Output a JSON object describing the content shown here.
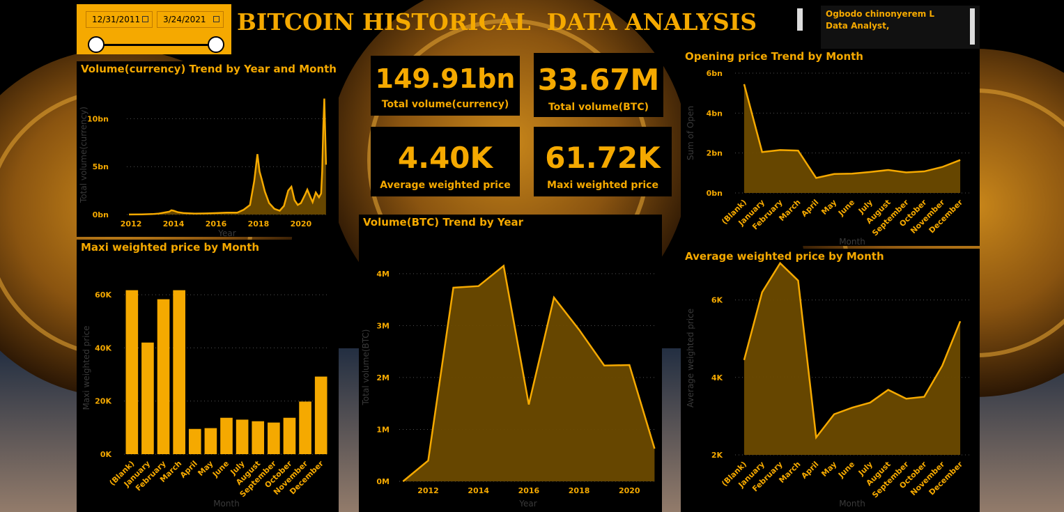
{
  "title": "BITCOIN HISTORICAL  DATA ANALYSIS",
  "author": {
    "name": "Ogbodo chinonyerem L",
    "role": "Data Analyst,"
  },
  "date_slicer": {
    "start": "12/31/2011",
    "end": "3/24/2021"
  },
  "kpis": {
    "total_volume_currency": {
      "value": "149.91bn",
      "label": "Total volume(currency)"
    },
    "total_volume_btc": {
      "value": "33.67M",
      "label": "Total volume(BTC)"
    },
    "avg_weighted_price": {
      "value": "4.40K",
      "label": "Average weighted price"
    },
    "maxi_weighted_price": {
      "value": "61.72K",
      "label": "Maxi weighted price"
    }
  },
  "colors": {
    "accent": "#F5A900",
    "fill": "#6B4A00",
    "background": "#000000"
  },
  "chart_data": [
    {
      "id": "volcur",
      "type": "area",
      "title": "Volume(currency) Trend by Year and Month",
      "xlabel": "Year",
      "ylabel": "Total volume(currency)",
      "x_ticks": [
        "2012",
        "2014",
        "2016",
        "2018",
        "2020"
      ],
      "y_ticks": [
        "0bn",
        "5bn",
        "10bn"
      ],
      "xlim": [
        2011.8,
        2021.25
      ],
      "ylim": [
        0,
        12.5
      ],
      "x": [
        2011.9,
        2012.5,
        2013.0,
        2013.3,
        2013.8,
        2013.9,
        2014.0,
        2014.2,
        2014.5,
        2015.0,
        2015.5,
        2016.0,
        2016.5,
        2017.0,
        2017.3,
        2017.6,
        2017.8,
        2017.95,
        2018.05,
        2018.15,
        2018.3,
        2018.5,
        2018.75,
        2019.0,
        2019.2,
        2019.4,
        2019.55,
        2019.7,
        2019.85,
        2020.0,
        2020.2,
        2020.3,
        2020.45,
        2020.55,
        2020.7,
        2020.85,
        2020.95,
        2021.0,
        2021.05,
        2021.1,
        2021.18
      ],
      "values": [
        0.01,
        0.02,
        0.05,
        0.1,
        0.3,
        0.45,
        0.4,
        0.25,
        0.15,
        0.1,
        0.12,
        0.15,
        0.2,
        0.2,
        0.5,
        1.0,
        3.5,
        6.3,
        4.5,
        3.7,
        2.4,
        1.2,
        0.6,
        0.4,
        0.9,
        2.5,
        2.9,
        1.5,
        1.0,
        1.2,
        2.1,
        2.6,
        1.8,
        1.3,
        2.3,
        1.8,
        2.2,
        4.5,
        9.0,
        12.1,
        5.2
      ]
    },
    {
      "id": "openprice",
      "type": "area",
      "title": "Opening price Trend by Month",
      "xlabel": "Month",
      "ylabel": "Sum of Open",
      "categories": [
        "(Blank)",
        "January",
        "February",
        "March",
        "April",
        "May",
        "June",
        "July",
        "August",
        "September",
        "October",
        "November",
        "December"
      ],
      "y_ticks": [
        "0bn",
        "2bn",
        "4bn",
        "6bn"
      ],
      "ylim": [
        0,
        6
      ],
      "values": [
        5.45,
        2.05,
        2.15,
        2.12,
        0.75,
        0.95,
        0.97,
        1.05,
        1.15,
        1.03,
        1.08,
        1.3,
        1.65
      ]
    },
    {
      "id": "maxiprice",
      "type": "bar",
      "title": "Maxi weighted price by Month",
      "xlabel": "Month",
      "ylabel": "Maxi weighted price",
      "categories": [
        "(Blank)",
        "January",
        "February",
        "March",
        "April",
        "May",
        "June",
        "July",
        "August",
        "September",
        "October",
        "November",
        "December"
      ],
      "y_ticks": [
        "0K",
        "20K",
        "40K",
        "60K"
      ],
      "ylim": [
        0,
        65
      ],
      "values": [
        61.7,
        42.0,
        58.3,
        61.7,
        9.5,
        9.8,
        13.7,
        13.0,
        12.4,
        11.9,
        13.7,
        19.8,
        29.2
      ]
    },
    {
      "id": "volbtc",
      "type": "area",
      "title": "Volume(BTC) Trend by Year",
      "xlabel": "Year",
      "ylabel": "Total volume(BTC)",
      "x_ticks": [
        "2012",
        "2014",
        "2016",
        "2018",
        "2020"
      ],
      "y_ticks": [
        "0M",
        "1M",
        "2M",
        "3M",
        "4M"
      ],
      "xlim": [
        2010.85,
        2021.1
      ],
      "ylim": [
        0,
        4.4
      ],
      "x": [
        2011,
        2012,
        2013,
        2014,
        2015,
        2016,
        2017,
        2018,
        2019,
        2020,
        2021
      ],
      "values": [
        0.0,
        0.4,
        3.73,
        3.76,
        4.15,
        1.48,
        3.54,
        2.92,
        2.23,
        2.24,
        0.63
      ]
    },
    {
      "id": "avgprice",
      "type": "area",
      "title": "Average weighted price by Month",
      "xlabel": "Month",
      "ylabel": "Average weighted price",
      "categories": [
        "(Blank)",
        "January",
        "February",
        "March",
        "April",
        "May",
        "June",
        "July",
        "August",
        "September",
        "October",
        "November",
        "December"
      ],
      "y_ticks": [
        "2K",
        "4K",
        "6K"
      ],
      "ylim": [
        2,
        7
      ],
      "values": [
        4.45,
        6.2,
        6.95,
        6.5,
        2.45,
        3.05,
        3.22,
        3.35,
        3.68,
        3.45,
        3.5,
        4.3,
        5.45
      ]
    }
  ]
}
